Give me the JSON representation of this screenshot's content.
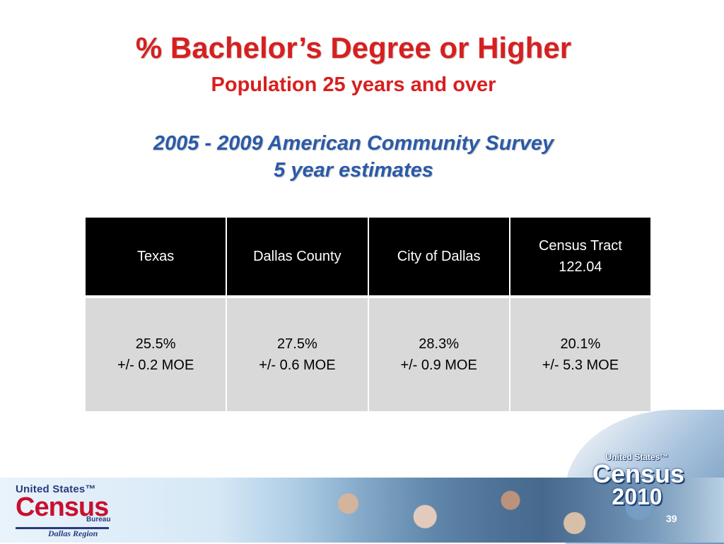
{
  "slide": {
    "title": "% Bachelor’s Degree or Higher",
    "subtitle": "Population 25 years and over",
    "survey_line1": "2005 - 2009 American Community Survey",
    "survey_line2": "5 year estimates",
    "page_number": "39"
  },
  "table": {
    "headers": [
      {
        "line1": "Texas",
        "line2": ""
      },
      {
        "line1": "Dallas County",
        "line2": ""
      },
      {
        "line1": "City of Dallas",
        "line2": ""
      },
      {
        "line1": "Census Tract",
        "line2": "122.04"
      }
    ],
    "values": [
      {
        "pct": "25.5%",
        "moe": "+/- 0.2 MOE"
      },
      {
        "pct": "27.5%",
        "moe": "+/- 0.6 MOE"
      },
      {
        "pct": "28.3%",
        "moe": "+/- 0.9 MOE"
      },
      {
        "pct": "20.1%",
        "moe": "+/- 5.3 MOE"
      }
    ]
  },
  "footer": {
    "logo_top": "United States™",
    "logo_main": "Census",
    "logo_bureau": "Bureau",
    "logo_region": "Dallas Region",
    "badge_top": "United States™",
    "badge_census": "Census",
    "badge_year": "2010"
  },
  "colors": {
    "title_red": "#d81f1f",
    "survey_blue": "#2b5aa8",
    "header_bg": "#000000",
    "cell_bg": "#d9d9d9"
  }
}
